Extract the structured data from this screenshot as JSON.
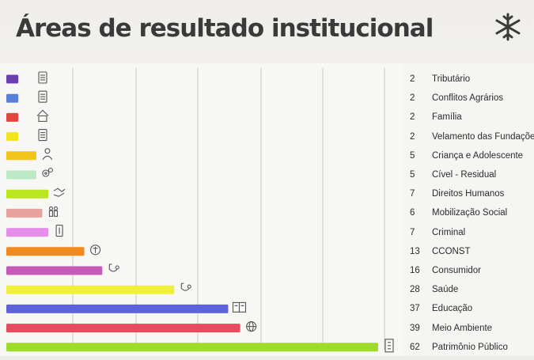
{
  "slide": {
    "title": "Áreas de resultado institucional",
    "logo_icon": "snowflake-logo-icon"
  },
  "colors": {
    "background": "#f3f2ef",
    "title": "#3a3a3a",
    "grid": "#c9c9c6"
  },
  "chart_data": {
    "type": "bar",
    "orientation": "horizontal",
    "title": "",
    "xlabel": "",
    "ylabel": "",
    "grid": true,
    "xlim": [
      0,
      62
    ],
    "categories": [
      "Tributário",
      "Conflitos Agrários",
      "Família",
      "Velamento das Fundações",
      "Criança e Adolescente",
      "Cível - Residual",
      "Direitos  Humanos",
      "Mobilização Social",
      "Criminal",
      "CCONST",
      "Consumidor",
      "Saúde",
      "Educação",
      "Meio Ambiente",
      "Patrimônio Público"
    ],
    "values": [
      2,
      2,
      2,
      2,
      5,
      5,
      7,
      6,
      7,
      13,
      16,
      28,
      37,
      39,
      62
    ],
    "value_labels": [
      "2",
      "2",
      "2",
      "2",
      "5",
      "5",
      "7",
      "6",
      "7",
      "13",
      "16",
      "28",
      "37",
      "39",
      "62"
    ],
    "bar_colors": [
      "#6a3fb0",
      "#5b7fd6",
      "#e0473f",
      "#f2e51e",
      "#f2c41e",
      "#bde8c6",
      "#b9e61e",
      "#e6a39e",
      "#e58ee8",
      "#f08a1e",
      "#c65ab9",
      "#eef03a",
      "#5f63db",
      "#e84a5f",
      "#9fdc2a"
    ],
    "bar_icons": [
      "document-icon",
      "document-icon",
      "house-icon",
      "document-icon",
      "person-icon",
      "gears-icon",
      "handshake-icon",
      "people-icon",
      "gavel-icon",
      "scales-icon",
      "stethoscope-icon",
      "stethoscope-icon",
      "book-icon",
      "globe-icon",
      "building-icon"
    ]
  }
}
